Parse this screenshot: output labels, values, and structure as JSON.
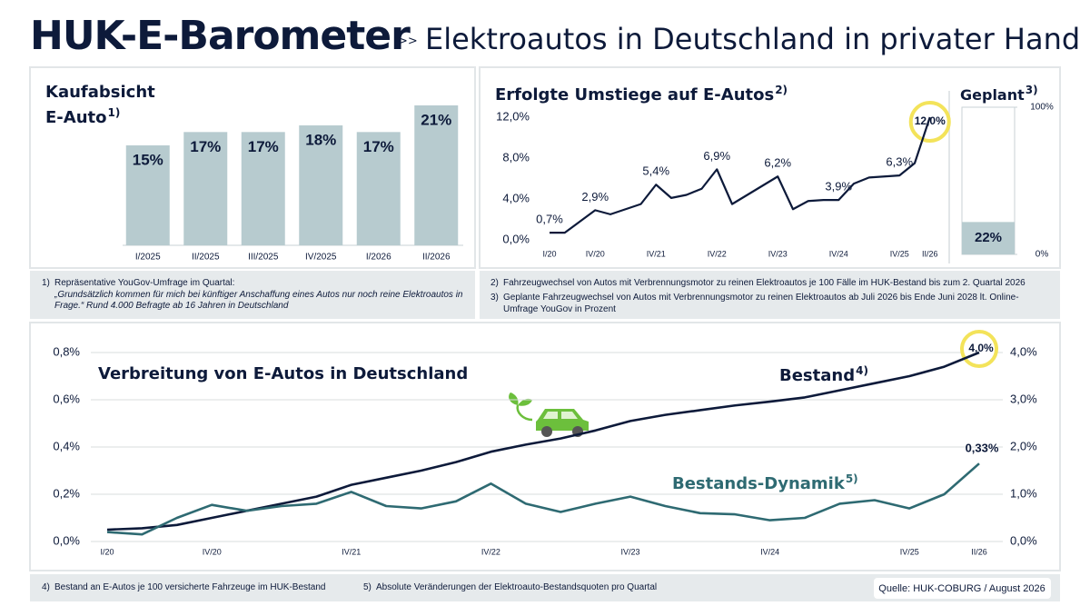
{
  "header": {
    "title": "HUK-E-Barometer",
    "separator": ">>",
    "subtitle": "Elektroautos in Deutschland in privater Hand"
  },
  "chart_data": [
    {
      "type": "bar",
      "title": "Kaufabsicht E-Auto",
      "note": "1)",
      "color": "#b7cbcf",
      "categories": [
        "I/2025",
        "II/2025",
        "III/2025",
        "IV/2025",
        "I/2026",
        "II/2026"
      ],
      "values": [
        15,
        17,
        17,
        18,
        17,
        21
      ],
      "value_labels": [
        "15%",
        "17%",
        "17%",
        "18%",
        "17%",
        "21%"
      ]
    },
    {
      "type": "line",
      "title": "Erfolgte Umstiege auf E-Autos",
      "note": "2)",
      "color": "#0d1a3a",
      "categories": [
        "I/20",
        null,
        null,
        "IV/20",
        null,
        null,
        null,
        "IV/21",
        null,
        null,
        null,
        "IV/22",
        null,
        null,
        null,
        "IV/23",
        null,
        null,
        null,
        "IV/24",
        null,
        null,
        null,
        "IV/25",
        null,
        "II/26"
      ],
      "values": [
        0.7,
        0.7,
        1.8,
        2.9,
        2.5,
        3.0,
        3.5,
        5.4,
        4.1,
        4.4,
        5.0,
        6.9,
        3.5,
        4.4,
        5.3,
        6.2,
        3.0,
        3.8,
        3.9,
        3.9,
        5.5,
        6.1,
        6.2,
        6.3,
        7.5,
        12.0
      ],
      "value_labels": [
        "0,7%",
        null,
        null,
        "2,9%",
        null,
        null,
        null,
        "5,4%",
        null,
        null,
        null,
        "6,9%",
        null,
        null,
        null,
        "6,2%",
        null,
        null,
        null,
        "3,9%",
        null,
        null,
        null,
        "6,3%",
        null,
        "12,0%"
      ],
      "ylim": [
        0,
        12
      ],
      "yticks": [
        {
          "value": 0,
          "label": "0,0%"
        },
        {
          "value": 4,
          "label": "4,0%"
        },
        {
          "value": 8,
          "label": "8,0%"
        },
        {
          "value": 12,
          "label": "12,0%"
        }
      ]
    },
    {
      "type": "bar",
      "title": "Geplant",
      "note": "3)",
      "color": "#b7cbcf",
      "values": [
        22
      ],
      "value_labels": [
        "22%"
      ],
      "ylim": [
        0,
        100
      ],
      "yticks": [
        {
          "value": 0,
          "label": "0%"
        },
        {
          "value": 100,
          "label": "100%"
        }
      ]
    },
    {
      "type": "line",
      "title": "Verbreitung von E-Autos in Deutschland",
      "categories": [
        "I/20",
        null,
        null,
        "IV/20",
        null,
        null,
        null,
        "IV/21",
        null,
        null,
        null,
        "IV/22",
        null,
        null,
        null,
        "IV/23",
        null,
        null,
        null,
        "IV/24",
        null,
        null,
        null,
        "IV/25",
        null,
        "II/26"
      ],
      "ylim": [
        0,
        0.8
      ],
      "yticks": [
        {
          "value": 0,
          "label": "0,0%"
        },
        {
          "value": 0.2,
          "label": "0,2%"
        },
        {
          "value": 0.4,
          "label": "0,4%"
        },
        {
          "value": 0.6,
          "label": "0,6%"
        },
        {
          "value": 0.8,
          "label": "0,8%"
        }
      ],
      "y2lim": [
        0,
        4
      ],
      "y2ticks": [
        {
          "value": 0,
          "label": "0,0%"
        },
        {
          "value": 1,
          "label": "1,0%"
        },
        {
          "value": 2,
          "label": "2,0%"
        },
        {
          "value": 3,
          "label": "3,0%"
        },
        {
          "value": 4,
          "label": "4,0%"
        }
      ],
      "grid": true,
      "series": [
        {
          "name": "Bestand",
          "note": "4)",
          "color": "#0d1a3a",
          "axis": "y2",
          "values": [
            0.25,
            0.28,
            0.35,
            0.5,
            0.65,
            0.8,
            0.95,
            1.2,
            1.35,
            1.5,
            1.68,
            1.9,
            2.05,
            2.18,
            2.35,
            2.55,
            2.68,
            2.78,
            2.88,
            2.96,
            3.05,
            3.2,
            3.35,
            3.5,
            3.7,
            4.0
          ],
          "value_labels": [
            null,
            null,
            null,
            null,
            null,
            null,
            null,
            null,
            null,
            null,
            null,
            null,
            null,
            null,
            null,
            null,
            null,
            null,
            null,
            null,
            null,
            null,
            null,
            null,
            null,
            "4,0%"
          ]
        },
        {
          "name": "Bestands-Dynamik",
          "note": "5)",
          "color": "#2e6a72",
          "values": [
            0.04,
            0.03,
            0.1,
            0.155,
            0.13,
            0.15,
            0.16,
            0.21,
            0.15,
            0.14,
            0.17,
            0.245,
            0.16,
            0.125,
            0.16,
            0.19,
            0.15,
            0.12,
            0.115,
            0.09,
            0.1,
            0.16,
            0.175,
            0.14,
            0.2,
            0.33
          ],
          "value_labels": [
            null,
            null,
            null,
            null,
            null,
            null,
            null,
            null,
            null,
            null,
            null,
            null,
            null,
            null,
            null,
            null,
            null,
            null,
            null,
            null,
            null,
            null,
            null,
            null,
            null,
            "0,33%"
          ]
        }
      ]
    }
  ],
  "footnotes": [
    {
      "marker": "1)",
      "text": "Repräsentative YouGov-Umfrage im Quartal:",
      "quote": "„Grundsätzlich kommen für mich bei künftiger Anschaffung eines Autos nur noch reine Elektroautos in Frage.“ Rund 4.000 Befragte ab 16 Jahren in Deutschland"
    },
    {
      "marker": "2)",
      "text": "Fahrzeugwechsel von Autos mit Verbrennungsmotor zu reinen Elektroautos je 100 Fälle im HUK-Bestand bis zum 2. Quartal 2026"
    },
    {
      "marker": "3)",
      "text": "Geplante Fahrzeugwechsel von Autos mit Verbrennungsmotor zu reinen Elektroautos ab Juli 2026 bis Ende Juni 2028 lt. Online-Umfrage YouGov in Prozent"
    },
    {
      "marker": "4)",
      "text": "Bestand an E-Autos je 100 versicherte Fahrzeuge im HUK-Bestand"
    },
    {
      "marker": "5)",
      "text": "Absolute Veränderungen der Elektroauto-Bestandsquoten pro Quartal"
    }
  ],
  "source": "Quelle: HUK-COBURG / August 2026"
}
